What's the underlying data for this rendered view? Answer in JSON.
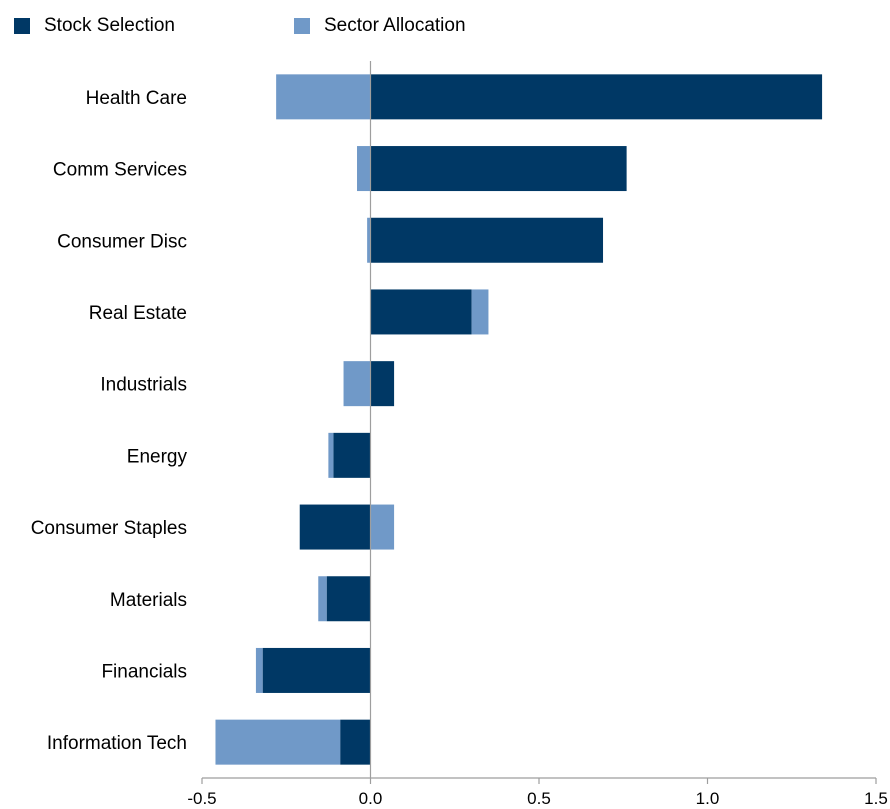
{
  "chart_data": {
    "type": "bar",
    "orientation": "horizontal",
    "stacked": true,
    "title": "",
    "xlabel": "",
    "ylabel": "",
    "xlim": [
      -0.5,
      1.5
    ],
    "x_ticks": [
      -0.5,
      0.0,
      0.5,
      1.0,
      1.5
    ],
    "x_tick_labels": [
      "-0.5",
      "0.0",
      "0.5",
      "1.0",
      "1.5"
    ],
    "grid": false,
    "legend_position": "top-left",
    "categories": [
      "Health Care",
      "Comm Services",
      "Consumer Disc",
      "Real Estate",
      "Industrials",
      "Energy",
      "Consumer Staples",
      "Materials",
      "Financials",
      "Information Tech"
    ],
    "series": [
      {
        "name": "Stock Selection",
        "color": "#003865",
        "values": [
          1.34,
          0.76,
          0.69,
          0.3,
          0.07,
          -0.11,
          -0.21,
          -0.13,
          -0.32,
          -0.09
        ]
      },
      {
        "name": "Sector Allocation",
        "color": "#7099c8",
        "values": [
          -0.28,
          -0.04,
          -0.01,
          0.05,
          -0.08,
          -0.015,
          0.07,
          -0.025,
          -0.02,
          -0.37
        ]
      }
    ]
  }
}
